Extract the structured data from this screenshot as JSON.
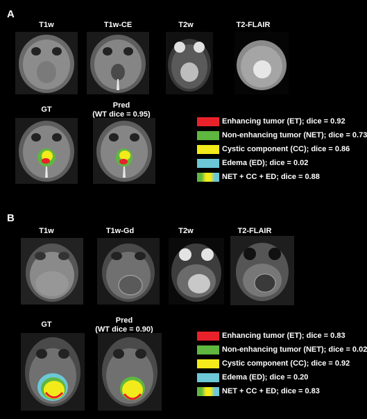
{
  "panelA": {
    "letter": "A",
    "columns": [
      "T1w",
      "T1w-CE",
      "T2w",
      "T2-FLAIR"
    ],
    "gt": "GT",
    "pred_line1": "Pred",
    "pred_line2": "(WT dice = 0.95)",
    "legend": [
      {
        "label": "Enhancing tumor (ET); dice = 0.92",
        "color": "#e8222a"
      },
      {
        "label": "Non-enhancing tumor (NET); dice = 0.73",
        "color": "#5fb73f"
      },
      {
        "label": "Cystic component (CC); dice = 0.86",
        "color": "#f2ea1a"
      },
      {
        "label": "Edema (ED); dice = 0.02",
        "color": "#6cc7d6"
      },
      {
        "label": "NET + CC + ED; dice = 0.88",
        "color": "gradient"
      }
    ]
  },
  "panelB": {
    "letter": "B",
    "columns": [
      "T1w",
      "T1w-Gd",
      "T2w",
      "T2-FLAIR"
    ],
    "gt": "GT",
    "pred_line1": "Pred",
    "pred_line2": "(WT dice = 0.90)",
    "legend": [
      {
        "label": "Enhancing tumor (ET); dice = 0.83",
        "color": "#e8222a"
      },
      {
        "label": "Non-enhancing tumor (NET); dice = 0.02",
        "color": "#5fb73f"
      },
      {
        "label": "Cystic component (CC); dice = 0.92",
        "color": "#f2ea1a"
      },
      {
        "label": "Edema (ED); dice = 0.20",
        "color": "#6cc7d6"
      },
      {
        "label": "NET + CC + ED; dice = 0.83",
        "color": "gradient"
      }
    ]
  }
}
